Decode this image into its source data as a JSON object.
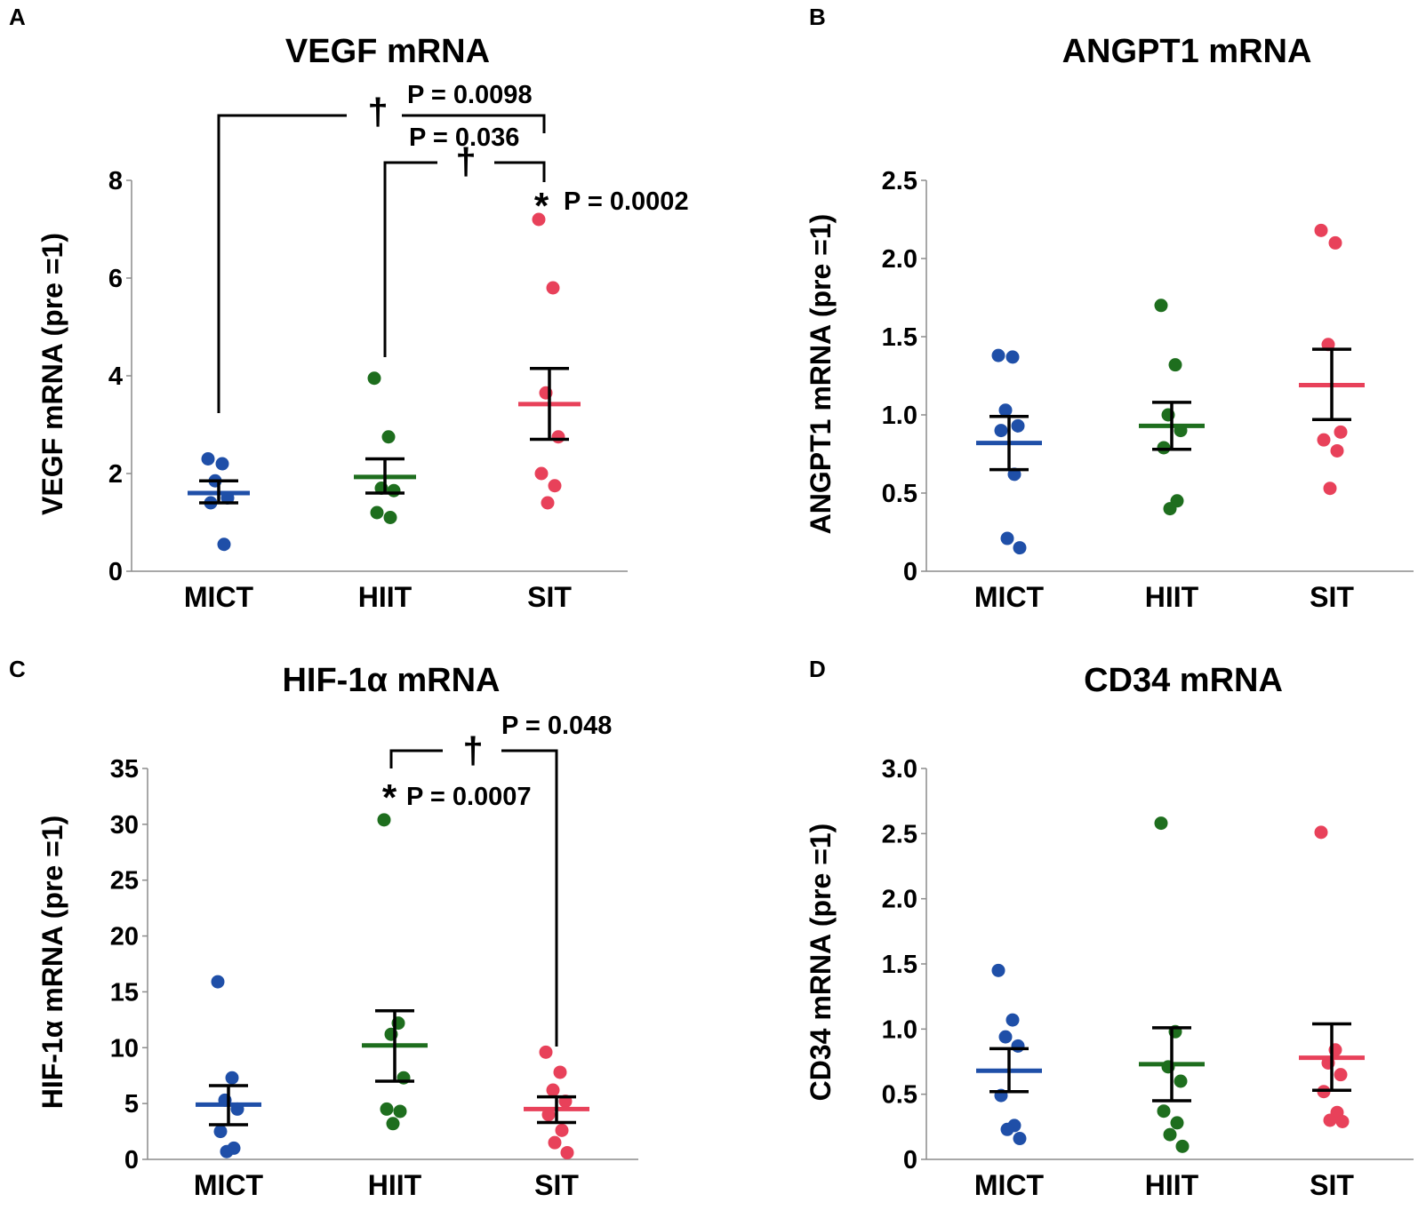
{
  "chart_data": [
    {
      "panel": "A",
      "type": "scatter",
      "title": "VEGF mRNA",
      "ylabel": "VEGF mRNA (pre =1)",
      "xlabel": "",
      "categories": [
        "MICT",
        "HIIT",
        "SIT"
      ],
      "ylim": [
        0,
        8
      ],
      "yticks": [
        0,
        2,
        4,
        6,
        8
      ],
      "ytick_labels": [
        "0",
        "2",
        "4",
        "6",
        "8"
      ],
      "series": [
        {
          "name": "MICT",
          "color": "#1f4fa8",
          "points": [
            2.3,
            2.2,
            1.85,
            1.5,
            1.4,
            0.55
          ],
          "mean": 1.6,
          "sem_low": 1.4,
          "sem_high": 1.85
        },
        {
          "name": "HIIT",
          "color": "#1e6e1e",
          "points": [
            3.95,
            2.75,
            1.7,
            1.65,
            1.2,
            1.1
          ],
          "mean": 1.93,
          "sem_low": 1.6,
          "sem_high": 2.3
        },
        {
          "name": "SIT",
          "color": "#e8415a",
          "points": [
            7.2,
            5.8,
            3.65,
            2.75,
            2.0,
            1.75,
            1.4
          ],
          "mean": 3.42,
          "sem_low": 2.7,
          "sem_high": 4.15
        }
      ],
      "annotations": [
        {
          "kind": "bracket",
          "from": "MICT",
          "to": "SIT",
          "symbol": "†",
          "label": "P = 0.0098"
        },
        {
          "kind": "bracket",
          "from": "HIIT",
          "to": "SIT",
          "symbol": "†",
          "label": "P = 0.036"
        },
        {
          "kind": "star",
          "at": "SIT",
          "symbol": "*",
          "label": "P = 0.0002"
        }
      ]
    },
    {
      "panel": "B",
      "type": "scatter",
      "title": "ANGPT1 mRNA",
      "ylabel": "ANGPT1 mRNA (pre =1)",
      "xlabel": "",
      "categories": [
        "MICT",
        "HIIT",
        "SIT"
      ],
      "ylim": [
        0,
        2.5
      ],
      "yticks": [
        0,
        0.5,
        1.0,
        1.5,
        2.0,
        2.5
      ],
      "ytick_labels": [
        "0",
        "0.5",
        "1.0",
        "1.5",
        "2.0",
        "2.5"
      ],
      "series": [
        {
          "name": "MICT",
          "color": "#1f4fa8",
          "points": [
            1.38,
            1.37,
            1.03,
            0.93,
            0.9,
            0.62,
            0.21,
            0.15
          ],
          "mean": 0.82,
          "sem_low": 0.65,
          "sem_high": 0.99
        },
        {
          "name": "HIIT",
          "color": "#1e6e1e",
          "points": [
            1.7,
            1.32,
            1.0,
            0.9,
            0.79,
            0.45,
            0.4
          ],
          "mean": 0.93,
          "sem_low": 0.78,
          "sem_high": 1.08
        },
        {
          "name": "SIT",
          "color": "#e8415a",
          "points": [
            2.18,
            2.1,
            1.45,
            0.89,
            0.84,
            0.77,
            0.53
          ],
          "mean": 1.19,
          "sem_low": 0.97,
          "sem_high": 1.42
        }
      ],
      "annotations": []
    },
    {
      "panel": "C",
      "type": "scatter",
      "title": "HIF-1α mRNA",
      "ylabel": "HIF-1α mRNA (pre =1)",
      "xlabel": "",
      "categories": [
        "MICT",
        "HIIT",
        "SIT"
      ],
      "ylim": [
        0,
        35
      ],
      "yticks": [
        0,
        5,
        10,
        15,
        20,
        25,
        30,
        35
      ],
      "ytick_labels": [
        "0",
        "5",
        "10",
        "15",
        "20",
        "25",
        "30",
        "35"
      ],
      "series": [
        {
          "name": "MICT",
          "color": "#1f4fa8",
          "points": [
            15.9,
            7.3,
            5.3,
            4.5,
            2.5,
            1.0,
            0.7
          ],
          "mean": 4.9,
          "sem_low": 3.1,
          "sem_high": 6.6
        },
        {
          "name": "HIIT",
          "color": "#1e6e1e",
          "points": [
            30.4,
            12.2,
            11.2,
            7.3,
            4.5,
            4.3,
            3.2
          ],
          "mean": 10.2,
          "sem_low": 7.0,
          "sem_high": 13.3
        },
        {
          "name": "SIT",
          "color": "#e8415a",
          "points": [
            9.6,
            7.8,
            6.2,
            5.2,
            4.0,
            2.6,
            1.5,
            0.6
          ],
          "mean": 4.5,
          "sem_low": 3.3,
          "sem_high": 5.6
        }
      ],
      "annotations": [
        {
          "kind": "bracket",
          "from": "HIIT",
          "to": "SIT",
          "symbol": "†",
          "label": "P = 0.048"
        },
        {
          "kind": "star",
          "at": "HIIT",
          "symbol": "*",
          "label": "P = 0.0007"
        }
      ]
    },
    {
      "panel": "D",
      "type": "scatter",
      "title": "CD34 mRNA",
      "ylabel": "CD34 mRNA (pre =1)",
      "xlabel": "",
      "categories": [
        "MICT",
        "HIIT",
        "SIT"
      ],
      "ylim": [
        0,
        3.0
      ],
      "yticks": [
        0,
        0.5,
        1.0,
        1.5,
        2.0,
        2.5,
        3.0
      ],
      "ytick_labels": [
        "0",
        "0.5",
        "1.0",
        "1.5",
        "2.0",
        "2.5",
        "3.0"
      ],
      "series": [
        {
          "name": "MICT",
          "color": "#1f4fa8",
          "points": [
            1.45,
            1.07,
            0.94,
            0.87,
            0.49,
            0.26,
            0.23,
            0.16
          ],
          "mean": 0.68,
          "sem_low": 0.52,
          "sem_high": 0.85
        },
        {
          "name": "HIIT",
          "color": "#1e6e1e",
          "points": [
            2.58,
            0.98,
            0.71,
            0.6,
            0.37,
            0.28,
            0.19,
            0.1
          ],
          "mean": 0.73,
          "sem_low": 0.45,
          "sem_high": 1.01
        },
        {
          "name": "SIT",
          "color": "#e8415a",
          "points": [
            2.51,
            0.84,
            0.74,
            0.65,
            0.52,
            0.36,
            0.3,
            0.29
          ],
          "mean": 0.78,
          "sem_low": 0.53,
          "sem_high": 1.04
        }
      ],
      "annotations": []
    }
  ]
}
